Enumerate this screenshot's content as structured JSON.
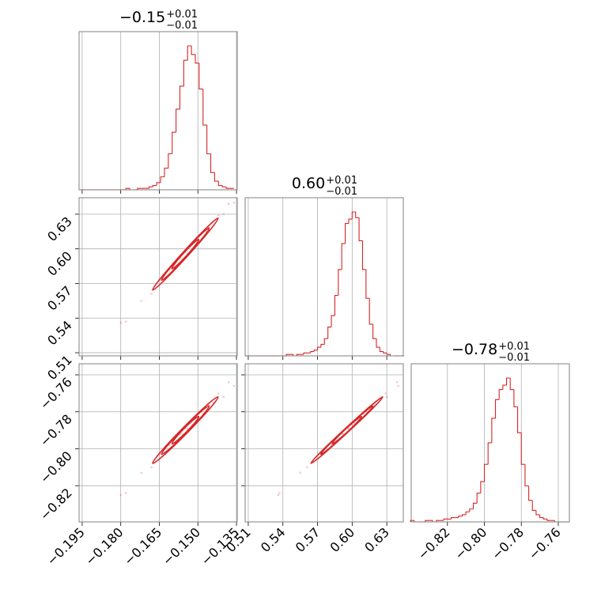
{
  "chart_data": {
    "type": "corner",
    "color": "#d62728",
    "grid": true,
    "params": [
      {
        "title": "−0.15",
        "plus": "+0.01",
        "minus": "−0.01",
        "xlim": [
          -0.1962,
          -0.1347
        ],
        "ticks": [
          {
            "value": -0.195,
            "label": "−0.195"
          },
          {
            "value": -0.18,
            "label": "−0.180"
          },
          {
            "value": -0.165,
            "label": "−0.165"
          },
          {
            "value": -0.15,
            "label": "−0.150"
          },
          {
            "value": -0.135,
            "label": "−0.135"
          }
        ],
        "bins": [
          -0.196,
          -0.1945,
          -0.193,
          -0.1915,
          -0.19,
          -0.1885,
          -0.187,
          -0.1855,
          -0.184,
          -0.1825,
          -0.181,
          -0.1795,
          -0.178,
          -0.1765,
          -0.175,
          -0.1735,
          -0.172,
          -0.1705,
          -0.169,
          -0.1675,
          -0.166,
          -0.1645,
          -0.163,
          -0.1615,
          -0.16,
          -0.1585,
          -0.157,
          -0.1555,
          -0.154,
          -0.1525,
          -0.151,
          -0.1495,
          -0.148,
          -0.1465,
          -0.145,
          -0.1435,
          -0.142,
          -0.1405,
          -0.139,
          -0.1375,
          -0.136
        ],
        "counts": [
          0,
          0,
          0,
          0,
          0,
          0,
          0,
          0,
          0,
          0,
          0,
          0,
          1,
          0,
          0,
          1,
          1,
          1,
          2,
          3,
          5,
          9,
          15,
          25,
          40,
          56,
          72,
          90,
          100,
          94,
          88,
          70,
          45,
          25,
          12,
          6,
          3,
          2,
          1,
          1
        ]
      },
      {
        "title": "0.60",
        "plus": "+0.01",
        "minus": "−0.01",
        "xlim": [
          0.5073,
          0.6443
        ],
        "ticks": [
          0.51,
          0.54,
          0.57,
          {
            "value": 0.6,
            "label": "0.60"
          },
          0.63
        ],
        "bins": [
          0.507,
          0.51,
          0.513,
          0.516,
          0.519,
          0.522,
          0.525,
          0.528,
          0.531,
          0.534,
          0.537,
          0.54,
          0.543,
          0.546,
          0.549,
          0.552,
          0.555,
          0.558,
          0.561,
          0.564,
          0.567,
          0.57,
          0.573,
          0.576,
          0.579,
          0.582,
          0.585,
          0.588,
          0.591,
          0.594,
          0.597,
          0.6,
          0.603,
          0.606,
          0.609,
          0.612,
          0.615,
          0.618,
          0.621,
          0.624,
          0.627,
          0.63,
          0.633,
          0.636,
          0.639,
          0.642,
          0.645
        ],
        "counts": [
          0,
          0,
          0,
          0,
          0,
          0,
          0,
          0,
          0,
          0,
          0,
          0,
          1,
          1,
          0,
          1,
          1,
          2,
          2,
          3,
          4,
          6,
          8,
          12,
          20,
          28,
          42,
          60,
          78,
          92,
          95,
          100,
          96,
          80,
          60,
          40,
          22,
          12,
          6,
          3,
          2,
          1,
          0,
          0,
          0,
          0
        ]
      },
      {
        "title": "−0.78",
        "plus": "+0.01",
        "minus": "−0.01",
        "xlim": [
          -0.8396,
          -0.754
        ],
        "ticks": [
          {
            "value": -0.82,
            "label": "−0.82"
          },
          {
            "value": -0.8,
            "label": "−0.80"
          },
          {
            "value": -0.78,
            "label": "−0.78"
          },
          {
            "value": -0.76,
            "label": "−0.76"
          }
        ],
        "bins": [
          -0.84,
          -0.838,
          -0.836,
          -0.834,
          -0.832,
          -0.83,
          -0.828,
          -0.826,
          -0.824,
          -0.822,
          -0.82,
          -0.818,
          -0.816,
          -0.814,
          -0.812,
          -0.81,
          -0.808,
          -0.806,
          -0.804,
          -0.802,
          -0.8,
          -0.798,
          -0.796,
          -0.794,
          -0.792,
          -0.79,
          -0.788,
          -0.786,
          -0.784,
          -0.782,
          -0.78,
          -0.778,
          -0.776,
          -0.774,
          -0.772,
          -0.77,
          -0.768,
          -0.766,
          -0.764,
          -0.762,
          -0.76,
          -0.758,
          -0.756,
          -0.754
        ],
        "counts": [
          1,
          0,
          0,
          0,
          1,
          1,
          0,
          1,
          1,
          2,
          2,
          3,
          3,
          4,
          5,
          7,
          9,
          13,
          20,
          28,
          40,
          55,
          72,
          85,
          92,
          95,
          100,
          92,
          80,
          62,
          40,
          25,
          15,
          8,
          5,
          3,
          2,
          1,
          1,
          0,
          0,
          0,
          0
        ]
      }
    ],
    "samples": [
      [
        -0.18,
        0.536,
        -0.825
      ],
      [
        -0.178,
        0.537,
        -0.824
      ],
      [
        -0.172,
        0.555,
        -0.813
      ],
      [
        -0.168,
        0.561,
        -0.81
      ],
      [
        -0.165,
        0.573,
        -0.803
      ],
      [
        -0.163,
        0.574,
        -0.802
      ],
      [
        -0.161,
        0.582,
        -0.798
      ],
      [
        -0.159,
        0.583,
        -0.797
      ],
      [
        -0.157,
        0.592,
        -0.792
      ],
      [
        -0.156,
        0.591,
        -0.792
      ],
      [
        -0.155,
        0.597,
        -0.789
      ],
      [
        -0.154,
        0.596,
        -0.789
      ],
      [
        -0.153,
        0.602,
        -0.786
      ],
      [
        -0.152,
        0.6,
        -0.787
      ],
      [
        -0.151,
        0.607,
        -0.783
      ],
      [
        -0.15,
        0.605,
        -0.784
      ],
      [
        -0.149,
        0.612,
        -0.78
      ],
      [
        -0.148,
        0.61,
        -0.781
      ],
      [
        -0.146,
        0.619,
        -0.776
      ],
      [
        -0.144,
        0.62,
        -0.775
      ],
      [
        -0.142,
        0.629,
        -0.77
      ],
      [
        -0.14,
        0.63,
        -0.772
      ],
      [
        -0.138,
        0.639,
        -0.764
      ],
      [
        -0.136,
        0.64,
        -0.766
      ]
    ]
  }
}
